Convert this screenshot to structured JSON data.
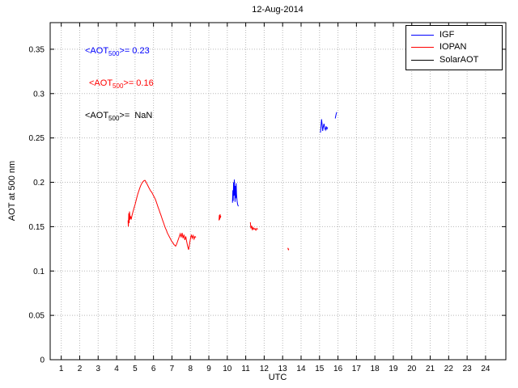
{
  "title": "12-Aug-2014",
  "axis": {
    "xlabel": "UTC",
    "ylabel": "AOT at 500 nm"
  },
  "annotations": [
    {
      "prefix": "<AOT",
      "sub": "500",
      "rest": ">= 0.23",
      "color": "#0000ff"
    },
    {
      "prefix": "<AOT",
      "sub": "500",
      "rest": ">= 0.16",
      "color": "#ff0000"
    },
    {
      "prefix": "<AOT",
      "sub": "500",
      "rest": ">=  NaN",
      "color": "#000000"
    }
  ],
  "legend": [
    {
      "label": "IGF",
      "color": "#0000ff"
    },
    {
      "label": "IOPAN",
      "color": "#ff0000"
    },
    {
      "label": "SolarAOT",
      "color": "#000000"
    }
  ],
  "chart_data": {
    "type": "line",
    "title": "12-Aug-2014",
    "xlabel": "UTC",
    "ylabel": "AOT at 500 nm",
    "xlim": [
      0.4,
      25.1
    ],
    "ylim": [
      0,
      0.38
    ],
    "grid": true,
    "legend_position": "northeast",
    "xticks": [
      1,
      2,
      3,
      4,
      5,
      6,
      7,
      8,
      9,
      10,
      11,
      12,
      13,
      14,
      15,
      16,
      17,
      18,
      19,
      20,
      21,
      22,
      23,
      24
    ],
    "xticklabels": [
      "1",
      "2",
      "3",
      "4",
      "5",
      "6",
      "7",
      "8",
      "9",
      "10",
      "11",
      "12",
      "13",
      "14",
      "15",
      "16",
      "17",
      "18",
      "19",
      "20",
      "21",
      "22",
      "23",
      "24"
    ],
    "yticks": [
      0,
      0.05,
      0.1,
      0.15,
      0.2,
      0.25,
      0.3,
      0.35
    ],
    "yticklabels": [
      "0",
      "0.05",
      "0.1",
      "0.15",
      "0.2",
      "0.25",
      "0.3",
      "0.35"
    ],
    "series": [
      {
        "name": "IGF",
        "color": "#0000ff",
        "mean_aot500": 0.23,
        "segments": [
          [
            [
              10.28,
              0.177
            ],
            [
              10.3,
              0.191
            ],
            [
              10.32,
              0.179
            ],
            [
              10.34,
              0.2
            ],
            [
              10.36,
              0.185
            ],
            [
              10.38,
              0.203
            ],
            [
              10.4,
              0.19
            ],
            [
              10.42,
              0.178
            ],
            [
              10.44,
              0.196
            ],
            [
              10.46,
              0.182
            ],
            [
              10.48,
              0.199
            ],
            [
              10.5,
              0.187
            ],
            [
              10.53,
              0.179
            ],
            [
              10.56,
              0.175
            ],
            [
              10.6,
              0.173
            ]
          ],
          [
            [
              15.05,
              0.256
            ],
            [
              15.08,
              0.263
            ],
            [
              15.11,
              0.271
            ],
            [
              15.14,
              0.265
            ],
            [
              15.17,
              0.258
            ],
            [
              15.2,
              0.262
            ],
            [
              15.24,
              0.266
            ],
            [
              15.28,
              0.261
            ],
            [
              15.32,
              0.259
            ],
            [
              15.36,
              0.263
            ],
            [
              15.4,
              0.26
            ],
            [
              15.44,
              0.262
            ]
          ],
          [
            [
              15.85,
              0.272
            ],
            [
              15.89,
              0.276
            ],
            [
              15.93,
              0.279
            ]
          ]
        ]
      },
      {
        "name": "IOPAN",
        "color": "#ff0000",
        "mean_aot500": 0.16,
        "segments": [
          [
            [
              4.62,
              0.157
            ],
            [
              4.64,
              0.15
            ],
            [
              4.66,
              0.165
            ],
            [
              4.68,
              0.154
            ],
            [
              4.7,
              0.167
            ],
            [
              4.73,
              0.158
            ],
            [
              4.76,
              0.161
            ],
            [
              4.8,
              0.159
            ],
            [
              4.84,
              0.163
            ],
            [
              4.88,
              0.166
            ],
            [
              4.92,
              0.169
            ],
            [
              4.96,
              0.172
            ],
            [
              5.0,
              0.175
            ],
            [
              5.05,
              0.179
            ],
            [
              5.1,
              0.183
            ],
            [
              5.15,
              0.187
            ],
            [
              5.2,
              0.19
            ],
            [
              5.25,
              0.193
            ],
            [
              5.3,
              0.196
            ],
            [
              5.35,
              0.198
            ],
            [
              5.4,
              0.2
            ],
            [
              5.45,
              0.201
            ],
            [
              5.5,
              0.202
            ],
            [
              5.55,
              0.202
            ],
            [
              5.6,
              0.2
            ],
            [
              5.65,
              0.198
            ],
            [
              5.7,
              0.196
            ],
            [
              5.75,
              0.194
            ],
            [
              5.8,
              0.192
            ],
            [
              5.85,
              0.19
            ],
            [
              5.9,
              0.189
            ],
            [
              5.95,
              0.187
            ],
            [
              6.0,
              0.185
            ],
            [
              6.05,
              0.183
            ],
            [
              6.1,
              0.181
            ],
            [
              6.15,
              0.178
            ],
            [
              6.2,
              0.175
            ],
            [
              6.25,
              0.172
            ],
            [
              6.3,
              0.169
            ],
            [
              6.35,
              0.166
            ],
            [
              6.4,
              0.163
            ],
            [
              6.45,
              0.16
            ],
            [
              6.5,
              0.157
            ],
            [
              6.55,
              0.154
            ],
            [
              6.6,
              0.151
            ],
            [
              6.65,
              0.148
            ],
            [
              6.7,
              0.146
            ],
            [
              6.75,
              0.143
            ],
            [
              6.8,
              0.141
            ],
            [
              6.85,
              0.139
            ],
            [
              6.9,
              0.137
            ],
            [
              6.95,
              0.135
            ],
            [
              7.0,
              0.133
            ],
            [
              7.05,
              0.132
            ],
            [
              7.1,
              0.13
            ],
            [
              7.15,
              0.129
            ],
            [
              7.2,
              0.128
            ],
            [
              7.25,
              0.13
            ],
            [
              7.3,
              0.133
            ],
            [
              7.35,
              0.136
            ],
            [
              7.4,
              0.139
            ],
            [
              7.45,
              0.142
            ],
            [
              7.5,
              0.138
            ],
            [
              7.55,
              0.143
            ],
            [
              7.6,
              0.137
            ],
            [
              7.65,
              0.141
            ],
            [
              7.7,
              0.135
            ],
            [
              7.75,
              0.139
            ],
            [
              7.8,
              0.133
            ],
            [
              7.85,
              0.128
            ],
            [
              7.9,
              0.124
            ],
            [
              7.95,
              0.13
            ],
            [
              8.0,
              0.136
            ],
            [
              8.05,
              0.141
            ],
            [
              8.1,
              0.137
            ],
            [
              8.15,
              0.14
            ],
            [
              8.2,
              0.136
            ],
            [
              8.25,
              0.139
            ],
            [
              8.3,
              0.138
            ]
          ],
          [
            [
              9.55,
              0.157
            ],
            [
              9.57,
              0.163
            ],
            [
              9.59,
              0.158
            ],
            [
              9.61,
              0.164
            ],
            [
              9.63,
              0.16
            ],
            [
              9.65,
              0.162
            ]
          ],
          [
            [
              11.25,
              0.155
            ],
            [
              11.28,
              0.148
            ],
            [
              11.32,
              0.151
            ],
            [
              11.36,
              0.146
            ],
            [
              11.4,
              0.149
            ],
            [
              11.45,
              0.147
            ],
            [
              11.5,
              0.148
            ],
            [
              11.55,
              0.146
            ],
            [
              11.6,
              0.148
            ],
            [
              11.65,
              0.147
            ]
          ],
          [
            [
              13.28,
              0.126
            ],
            [
              13.31,
              0.124
            ],
            [
              13.34,
              0.125
            ]
          ]
        ]
      },
      {
        "name": "SolarAOT",
        "color": "#000000",
        "mean_aot500": "NaN",
        "segments": []
      }
    ]
  }
}
